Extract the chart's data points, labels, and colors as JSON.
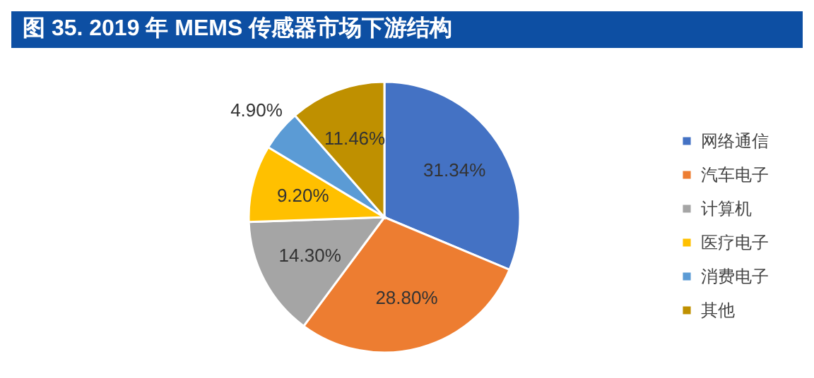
{
  "chart_data": {
    "type": "pie",
    "title": "图 35. 2019 年 MEMS 传感器市场下游结构",
    "categories": [
      "网络通信",
      "汽车电子",
      "计算机",
      "医疗电子",
      "消费电子",
      "其他"
    ],
    "values": [
      31.34,
      28.8,
      14.3,
      9.2,
      4.9,
      11.46
    ],
    "colors": [
      "#4472c4",
      "#ed7d31",
      "#a5a5a5",
      "#ffc000",
      "#5b9bd5",
      "#bf9000"
    ],
    "value_labels": [
      "31.34%",
      "28.80%",
      "14.30%",
      "9.20%",
      "4.90%",
      "11.46%"
    ],
    "legend": "right"
  }
}
